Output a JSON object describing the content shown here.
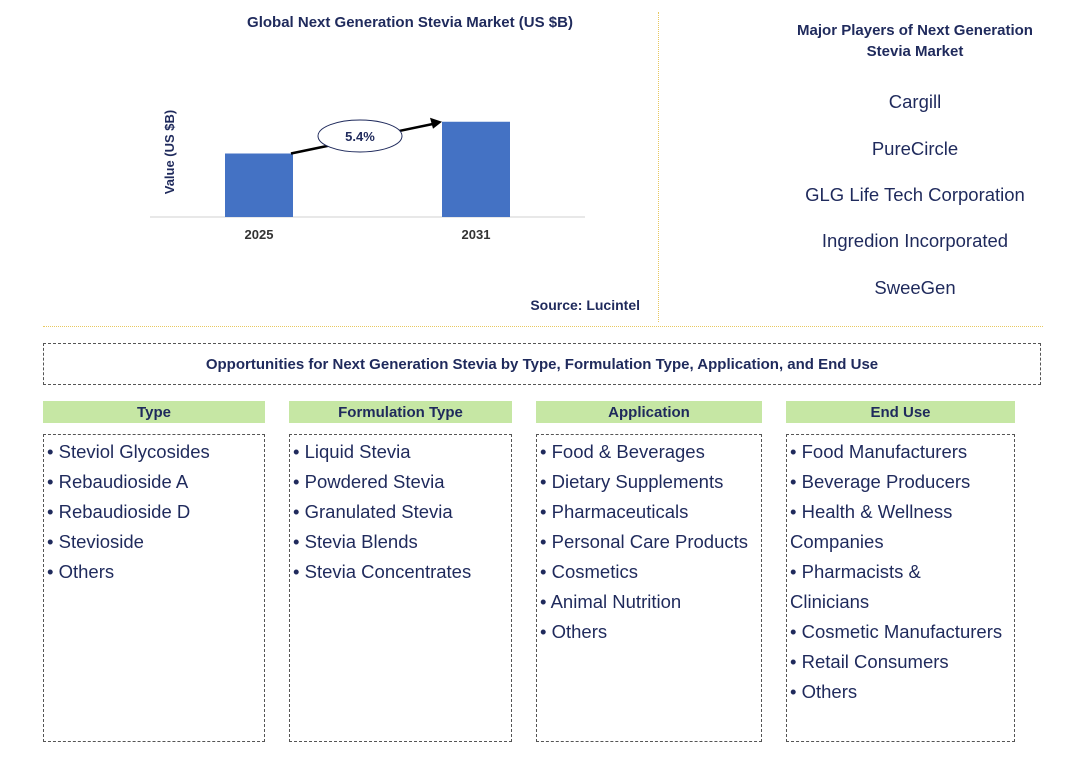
{
  "chart": {
    "title": "Global Next Generation Stevia Market (US $B)",
    "source": "Source: Lucintel"
  },
  "chart_data": {
    "type": "bar",
    "title": "Global Next Generation Stevia Market (US $B)",
    "categories": [
      "2025",
      "2031"
    ],
    "values": [
      1.0,
      1.5
    ],
    "ylabel": "Value (US $B)",
    "xlabel": "",
    "ylim": [
      0,
      2.0
    ],
    "grid": false,
    "annotation": "5.4%",
    "bar_color": "#4472c4"
  },
  "players": {
    "title": "Major Players of Next Generation Stevia Market",
    "items": [
      "Cargill",
      "PureCircle",
      "GLG Life Tech Corporation",
      "Ingredion Incorporated",
      "SweeGen"
    ]
  },
  "opportunities": {
    "title": "Opportunities for Next Generation Stevia by Type, Formulation Type, Application, and End Use",
    "columns": [
      {
        "header": "Type",
        "items": [
          "• Steviol Glycosides",
          "• Rebaudioside A",
          "• Rebaudioside D",
          "• Stevioside",
          "• Others"
        ]
      },
      {
        "header": "Formulation Type",
        "items": [
          "• Liquid Stevia",
          "• Powdered Stevia",
          "• Granulated Stevia",
          "• Stevia Blends",
          "• Stevia Concentrates"
        ]
      },
      {
        "header": "Application",
        "items": [
          "• Food & Beverages",
          "• Dietary Supplements",
          "• Pharmaceuticals",
          "• Personal Care Products",
          "• Cosmetics",
          "• Animal Nutrition",
          "• Others"
        ]
      },
      {
        "header": "End Use",
        "items": [
          "• Food Manufacturers",
          "• Beverage Producers",
          "• Health & Wellness",
          "Companies",
          "• Pharmacists &",
          "Clinicians",
          "• Cosmetic Manufacturers",
          "• Retail Consumers",
          "• Others"
        ]
      }
    ]
  },
  "colors": {
    "header_green": "#c6e7a4",
    "text_navy": "#1f2a5c",
    "divider_gold": "#e8c860"
  }
}
